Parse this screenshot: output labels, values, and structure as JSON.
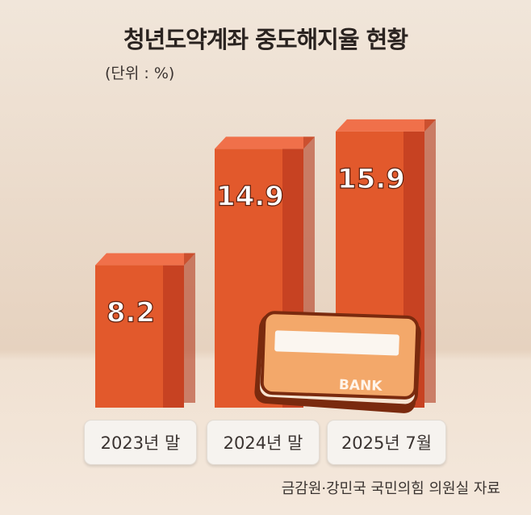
{
  "chart_data": {
    "type": "bar",
    "title": "청년도약계좌 중도해지율 현황",
    "unit_label": "(단위 : %)",
    "categories": [
      "2023년 말",
      "2024년 말",
      "2025년 7월"
    ],
    "values": [
      8.2,
      14.9,
      15.9
    ],
    "value_labels": [
      "8.2",
      "14.9",
      "15.9"
    ],
    "ylim": [
      0,
      16.5
    ],
    "grid": false,
    "legend": "none",
    "source": "금감원·강민국 국민의힘 의원실 자료",
    "decoration_text": "BANK",
    "colors": {
      "bar_front": "#e2592c",
      "bar_side": "#c74222",
      "bar_top": "#f0704a",
      "background_top": "#f0e3d6",
      "floor": "#eddcc9",
      "card": "#f3a86a"
    }
  }
}
